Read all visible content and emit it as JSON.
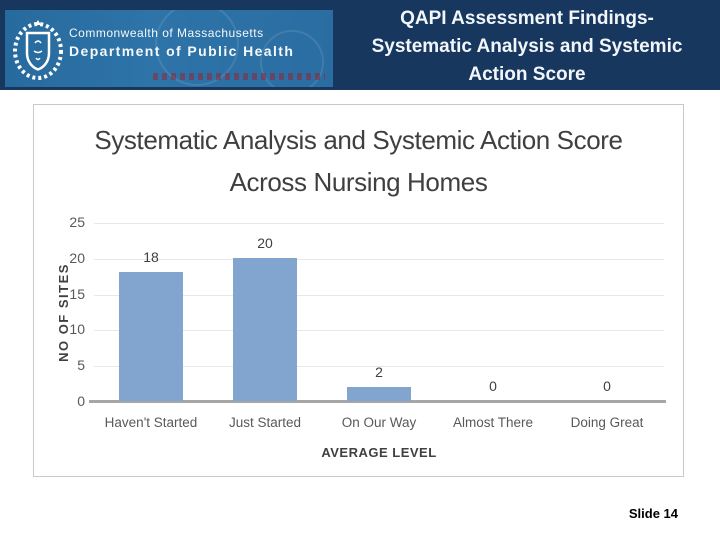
{
  "header": {
    "org_line1": "Commonwealth of Massachusetts",
    "org_line2": "Department of Public Health",
    "title_lines": [
      "QAPI Assessment Findings-",
      "Systematic Analysis and Systemic",
      "Action Score"
    ],
    "colors": {
      "band_navy": "#17375e",
      "banner_blue": "#2e74a8",
      "title_text": "#f2f6fa"
    }
  },
  "chart_data": {
    "type": "bar",
    "title_lines": [
      "Systematic Analysis and Systemic Action Score",
      "Across Nursing Homes"
    ],
    "categories": [
      "Haven't Started",
      "Just Started",
      "On Our Way",
      "Almost There",
      "Doing Great"
    ],
    "values": [
      18,
      20,
      2,
      0,
      0
    ],
    "xlabel": "AVERAGE LEVEL",
    "ylabel": "NO OF SITES",
    "ylim": [
      0,
      25
    ],
    "ytick_step": 5,
    "grid": true,
    "legend": "none",
    "bar_color": "#82a5cf",
    "gridline_color": "#e8e8e8",
    "baseline_color": "#a6a6a6"
  },
  "footer": {
    "slide_label": "Slide 14"
  }
}
